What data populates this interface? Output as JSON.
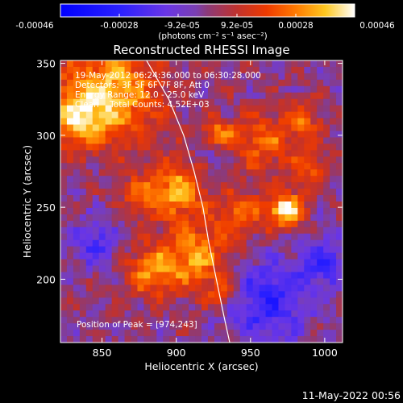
{
  "colorbar": {
    "ticks": [
      "-0.00046",
      "-0.00028",
      "-9.2e-05",
      "9.2e-05",
      "0.00028",
      "0.00046"
    ],
    "units_label": "(photons cm⁻² s⁻¹ asec⁻²)"
  },
  "chart_data": {
    "type": "heatmap",
    "title": "Reconstructed RHESSI Image",
    "xlabel": "Heliocentric X (arcsec)",
    "ylabel": "Heliocentric Y (arcsec)",
    "xlim": [
      822,
      1012
    ],
    "ylim": [
      156,
      352
    ],
    "x_ticks": [
      850,
      900,
      950,
      1000
    ],
    "y_ticks": [
      200,
      250,
      300,
      350
    ],
    "info_lines": [
      "19-May-2012 06:24:36.000 to 06:30:28.000",
      "Detectors: 3F 5F 6F 7F 8F, Att 0",
      "Energy Range: 12.0 - 25.0 keV",
      "Clean    Total Counts: 4.52E+03"
    ],
    "peak_label": "Position of Peak = [974,243]",
    "peak_position": [
      974,
      243
    ],
    "colorscale_range": [
      -0.00046,
      0.00046
    ],
    "limb_curve": [
      [
        880,
        352
      ],
      [
        895,
        325
      ],
      [
        905,
        300
      ],
      [
        912,
        275
      ],
      [
        918,
        250
      ],
      [
        922,
        225
      ],
      [
        927,
        200
      ],
      [
        932,
        175
      ],
      [
        936,
        156
      ]
    ],
    "blobs": [
      {
        "x": 974,
        "y": 248,
        "sigma": 8,
        "amp": 1.0
      },
      {
        "x": 855,
        "y": 330,
        "sigma": 24,
        "amp": 0.78
      },
      {
        "x": 832,
        "y": 310,
        "sigma": 14,
        "amp": 0.55
      },
      {
        "x": 900,
        "y": 262,
        "sigma": 14,
        "amp": 0.72
      },
      {
        "x": 912,
        "y": 215,
        "sigma": 16,
        "amp": 0.7
      },
      {
        "x": 882,
        "y": 205,
        "sigma": 12,
        "amp": 0.58
      },
      {
        "x": 945,
        "y": 245,
        "sigma": 12,
        "amp": 0.5
      },
      {
        "x": 958,
        "y": 295,
        "sigma": 14,
        "amp": 0.52
      },
      {
        "x": 985,
        "y": 310,
        "sigma": 10,
        "amp": 0.45
      },
      {
        "x": 990,
        "y": 275,
        "sigma": 10,
        "amp": 0.4
      },
      {
        "x": 928,
        "y": 300,
        "sigma": 8,
        "amp": 0.62
      },
      {
        "x": 875,
        "y": 258,
        "sigma": 9,
        "amp": 0.38
      },
      {
        "x": 930,
        "y": 190,
        "sigma": 8,
        "amp": 0.4
      },
      {
        "x": 845,
        "y": 225,
        "sigma": 11,
        "amp": -0.45
      },
      {
        "x": 962,
        "y": 185,
        "sigma": 20,
        "amp": -0.55
      },
      {
        "x": 1000,
        "y": 212,
        "sigma": 12,
        "amp": -0.45
      },
      {
        "x": 925,
        "y": 288,
        "sigma": 8,
        "amp": -0.3
      }
    ]
  },
  "timestamp": "11-May-2022 00:56"
}
